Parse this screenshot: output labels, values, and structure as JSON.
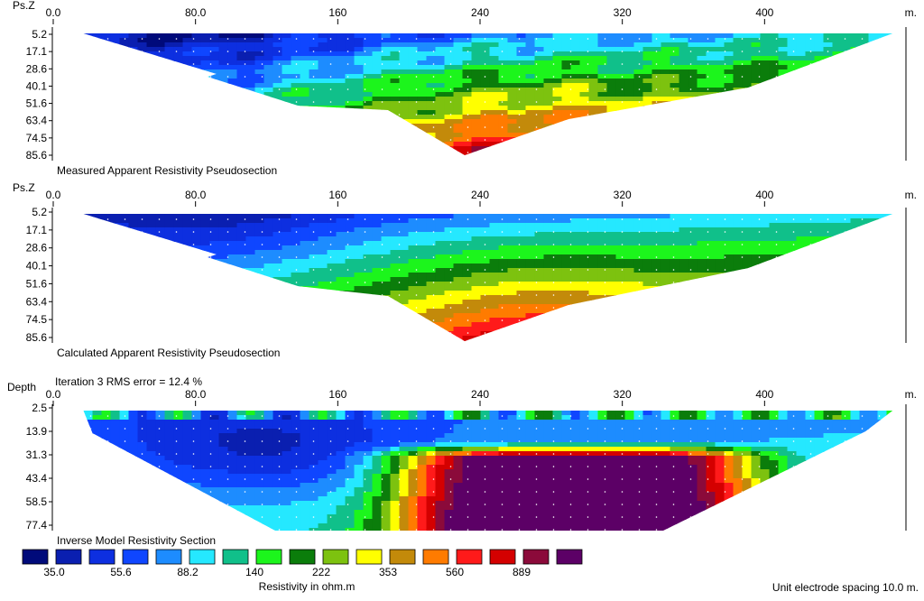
{
  "chart_data": [
    {
      "type": "heatmap",
      "title": "Measured Apparent Resistivity Pseudosection",
      "ylabel": "Ps.Z",
      "x_unit": "m.",
      "x_ticks": [
        "0.0",
        "80.0",
        "160",
        "240",
        "320",
        "400"
      ],
      "y_ticks": [
        "5.2",
        "17.1",
        "28.6",
        "40.1",
        "51.6",
        "63.4",
        "74.5",
        "85.6"
      ],
      "xlim": [
        0,
        480
      ],
      "profile_x_range": [
        5,
        460
      ],
      "max_depth_at_center": 85.6,
      "description_of_values": "low resistivity (35–140 ohm.m) near surface on left half; increasing to 560–889 ohm.m at depth around x=200–300"
    },
    {
      "type": "heatmap",
      "title": "Calculated Apparent Resistivity Pseudosection",
      "ylabel": "Ps.Z",
      "x_unit": "m.",
      "x_ticks": [
        "0.0",
        "80.0",
        "160",
        "240",
        "320",
        "400"
      ],
      "y_ticks": [
        "5.2",
        "17.1",
        "28.6",
        "40.1",
        "51.6",
        "63.4",
        "74.5",
        "85.6"
      ],
      "xlim": [
        0,
        480
      ],
      "profile_x_range": [
        5,
        460
      ],
      "max_depth_at_center": 85.6
    },
    {
      "type": "heatmap",
      "title": "Inverse Model Resistivity Section",
      "subtitle": "Iteration 3 RMS error = 12.4 %",
      "ylabel": "Depth",
      "x_unit": "m.",
      "x_ticks": [
        "0.0",
        "80.0",
        "160",
        "240",
        "320",
        "400"
      ],
      "y_ticks": [
        "2.5",
        "13.9",
        "31.3",
        "43.4",
        "58.5",
        "77.4"
      ],
      "xlim": [
        0,
        480
      ],
      "profile_x_range": [
        5,
        460
      ],
      "description_of_values": "conductive (35–88 ohm.m) top-left; highly resistive body (>889 ohm.m) between x≈200 and x≈340 below 40 m depth"
    }
  ],
  "legend": {
    "title": "Resistivity in ohm.m",
    "colors": [
      "#000a7a",
      "#0a1fb0",
      "#0d2fe0",
      "#0f46ff",
      "#1d8cff",
      "#25e8ff",
      "#10c08a",
      "#1cf51c",
      "#0b7d0b",
      "#7dc20f",
      "#ffff00",
      "#c38a0a",
      "#ff7b00",
      "#ff1a1a",
      "#d40000",
      "#8b0a3a",
      "#5c0066"
    ],
    "labels": [
      "35.0",
      "55.6",
      "88.2",
      "140",
      "222",
      "353",
      "560",
      "889"
    ]
  },
  "footer": {
    "spacing": "Unit electrode spacing 10.0 m."
  }
}
